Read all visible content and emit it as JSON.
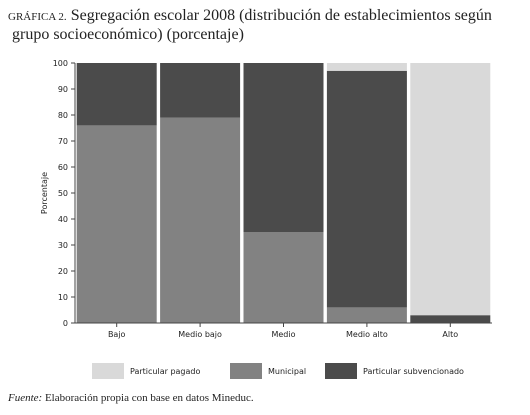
{
  "chart_data": {
    "type": "stacked-bar",
    "label": "GRÁFICA 2.",
    "title": "Segregación escolar 2008 (distribución de establecimientos según grupo socioeconómico) (porcentaje)",
    "y_label": "Porcentaje",
    "categories": [
      "Bajo",
      "Medio bajo",
      "Medio",
      "Medio alto",
      "Alto"
    ],
    "series": [
      {
        "name": "Particular pagado",
        "color": "#d9d9d9",
        "values": [
          0,
          0,
          0,
          3,
          97
        ]
      },
      {
        "name": "Municipal",
        "color": "#828282",
        "values": [
          76,
          79,
          35,
          6,
          0
        ]
      },
      {
        "name": "Particular subvencionado",
        "color": "#4b4b4b",
        "values": [
          24,
          21,
          65,
          91,
          3
        ]
      }
    ],
    "ylim": [
      0,
      100
    ],
    "yticks": [
      0,
      10,
      20,
      30,
      40,
      50,
      60,
      70,
      80,
      90,
      100
    ],
    "source_label": "Fuente:",
    "source": "Elaboración propia con base en datos Mineduc."
  }
}
